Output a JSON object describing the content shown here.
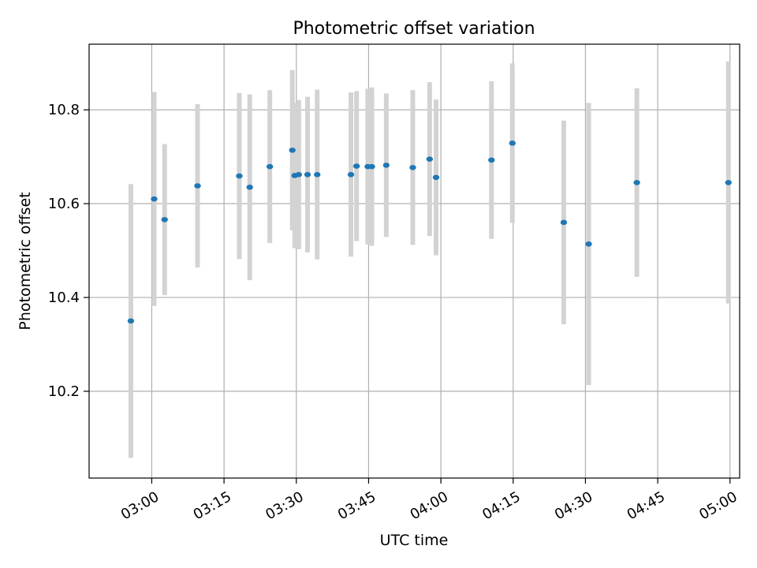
{
  "chart_data": {
    "type": "scatter",
    "title": "Photometric offset variation",
    "xlabel": "UTC time",
    "ylabel": "Photometric offset",
    "x_axis_kind": "time",
    "xlim": [
      "02:47",
      "05:02"
    ],
    "ylim": [
      10.015,
      10.94
    ],
    "grid": true,
    "xticks": [
      "03:00",
      "03:15",
      "03:30",
      "03:45",
      "04:00",
      "04:15",
      "04:30",
      "04:45",
      "05:00"
    ],
    "yticks": [
      10.2,
      10.4,
      10.6,
      10.8
    ],
    "ytick_labels": [
      "10.2",
      "10.4",
      "10.6",
      "10.8"
    ],
    "colors": {
      "marker": "#1f77b4",
      "errorbar": "#d3d3d3",
      "grid": "#b0b0b0",
      "axes": "#000000"
    },
    "points": [
      {
        "time": "02:55:40",
        "y": 10.35,
        "err": 0.292
      },
      {
        "time": "03:00:30",
        "y": 10.61,
        "err": 0.228
      },
      {
        "time": "03:02:40",
        "y": 10.566,
        "err": 0.161
      },
      {
        "time": "03:09:30",
        "y": 10.638,
        "err": 0.174
      },
      {
        "time": "03:18:10",
        "y": 10.659,
        "err": 0.177
      },
      {
        "time": "03:20:20",
        "y": 10.635,
        "err": 0.198
      },
      {
        "time": "03:24:30",
        "y": 10.679,
        "err": 0.163
      },
      {
        "time": "03:29:10",
        "y": 10.714,
        "err": 0.171
      },
      {
        "time": "03:29:40",
        "y": 10.66,
        "err": 0.155
      },
      {
        "time": "03:30:30",
        "y": 10.662,
        "err": 0.159
      },
      {
        "time": "03:32:20",
        "y": 10.662,
        "err": 0.166
      },
      {
        "time": "03:34:20",
        "y": 10.662,
        "err": 0.181
      },
      {
        "time": "03:41:20",
        "y": 10.662,
        "err": 0.175
      },
      {
        "time": "03:42:30",
        "y": 10.68,
        "err": 0.16
      },
      {
        "time": "03:44:50",
        "y": 10.679,
        "err": 0.166
      },
      {
        "time": "03:45:40",
        "y": 10.679,
        "err": 0.169
      },
      {
        "time": "03:48:40",
        "y": 10.682,
        "err": 0.153
      },
      {
        "time": "03:54:10",
        "y": 10.677,
        "err": 0.165
      },
      {
        "time": "03:57:40",
        "y": 10.695,
        "err": 0.164
      },
      {
        "time": "03:59:00",
        "y": 10.656,
        "err": 0.166
      },
      {
        "time": "04:10:30",
        "y": 10.693,
        "err": 0.168
      },
      {
        "time": "04:14:50",
        "y": 10.729,
        "err": 0.17
      },
      {
        "time": "04:25:30",
        "y": 10.56,
        "err": 0.217
      },
      {
        "time": "04:30:40",
        "y": 10.514,
        "err": 0.301
      },
      {
        "time": "04:40:40",
        "y": 10.645,
        "err": 0.201
      },
      {
        "time": "04:59:40",
        "y": 10.645,
        "err": 0.258
      }
    ]
  }
}
